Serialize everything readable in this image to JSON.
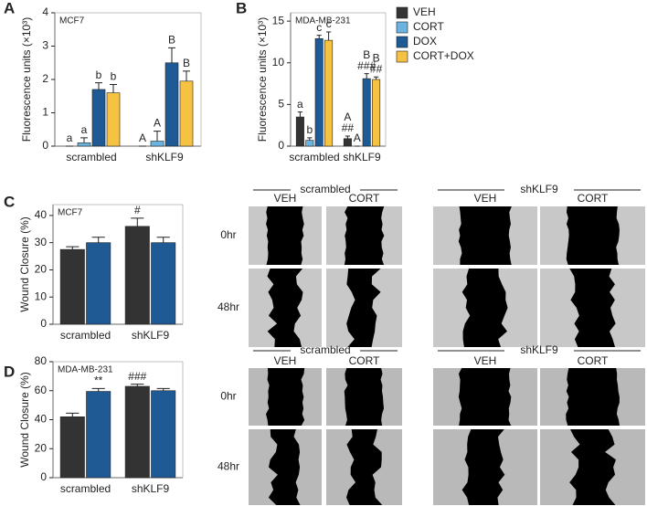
{
  "panel_letters": [
    "A",
    "B",
    "C",
    "D"
  ],
  "chart_data": [
    {
      "type": "bar",
      "label": "MCF7",
      "y_label": "Fluorescence units (×10³)",
      "categories": [
        "scrambled",
        "shKLF9"
      ],
      "ylim": [
        0,
        4
      ],
      "yticks": [
        0,
        1,
        2,
        3,
        4
      ],
      "series": [
        {
          "name": "VEH",
          "color": "#333333",
          "values": [
            0,
            0
          ],
          "errors": [
            0,
            0
          ],
          "labels": [
            [
              "a"
            ],
            [
              "A"
            ]
          ]
        },
        {
          "name": "CORT",
          "color": "#6cb4e0",
          "values": [
            0.1,
            0.15
          ],
          "errors": [
            0.15,
            0.3
          ],
          "labels": [
            [
              "a"
            ],
            [
              "A"
            ]
          ]
        },
        {
          "name": "DOX",
          "color": "#1f5a94",
          "values": [
            1.7,
            2.5
          ],
          "errors": [
            0.2,
            0.45
          ],
          "labels": [
            [
              "b"
            ],
            [
              "B"
            ]
          ]
        },
        {
          "name": "CORT+DOX",
          "color": "#f5c242",
          "values": [
            1.6,
            1.95
          ],
          "errors": [
            0.25,
            0.3
          ],
          "labels": [
            [
              "b"
            ],
            [
              "B"
            ]
          ]
        }
      ]
    },
    {
      "type": "bar",
      "label": "MDA-MB-231",
      "y_label": "Fluorescence units (×10³)",
      "categories": [
        "scrambled",
        "shKLF9"
      ],
      "ylim": [
        0,
        16
      ],
      "yticks": [
        0,
        5,
        10,
        15
      ],
      "legend": "right",
      "series": [
        {
          "name": "VEH",
          "color": "#333333",
          "values": [
            3.5,
            0.9
          ],
          "errors": [
            0.6,
            0.3
          ],
          "labels": [
            [
              "a"
            ],
            [
              "A",
              "##"
            ]
          ]
        },
        {
          "name": "CORT",
          "color": "#6cb4e0",
          "values": [
            0.7,
            0
          ],
          "errors": [
            0.3,
            0
          ],
          "labels": [
            [
              "b"
            ],
            [
              "A"
            ]
          ]
        },
        {
          "name": "DOX",
          "color": "#1f5a94",
          "values": [
            12.9,
            8.1
          ],
          "errors": [
            0.4,
            0.6
          ],
          "labels": [
            [
              "c"
            ],
            [
              "B",
              "###"
            ]
          ]
        },
        {
          "name": "CORT+DOX",
          "color": "#f5c242",
          "values": [
            12.7,
            8.0
          ],
          "errors": [
            1.0,
            0.3
          ],
          "labels": [
            [
              "c"
            ],
            [
              "B",
              "##"
            ]
          ]
        }
      ]
    },
    {
      "type": "bar",
      "label": "MCF7",
      "y_label": "Wound Closure (%)",
      "categories": [
        "scrambled",
        "shKLF9"
      ],
      "ylim": [
        0,
        44
      ],
      "yticks": [
        0,
        10,
        20,
        30,
        40
      ],
      "series": [
        {
          "color": "#333333",
          "values": [
            27.5,
            36
          ],
          "errors": [
            1,
            3
          ],
          "labels": [
            [],
            [
              "#"
            ]
          ]
        },
        {
          "color": "#1f5a94",
          "values": [
            30,
            30
          ],
          "errors": [
            2,
            2
          ],
          "labels": [
            [],
            []
          ]
        }
      ]
    },
    {
      "type": "bar",
      "label": "MDA-MB-231",
      "y_label": "Wound Closure (%)",
      "categories": [
        "scrambled",
        "shKLF9"
      ],
      "ylim": [
        0,
        80
      ],
      "yticks": [
        0,
        20,
        40,
        60,
        80
      ],
      "series": [
        {
          "color": "#333333",
          "values": [
            42,
            63
          ],
          "errors": [
            2.5,
            1.5
          ],
          "labels": [
            [],
            [
              "###"
            ]
          ]
        },
        {
          "color": "#1f5a94",
          "values": [
            59.5,
            60
          ],
          "errors": [
            2,
            1.5
          ],
          "labels": [
            [
              "**"
            ],
            []
          ]
        }
      ]
    }
  ],
  "micrographs": [
    {
      "groups": [
        "scrambled",
        "shKLF9"
      ],
      "columns": [
        "VEH",
        "CORT",
        "VEH",
        "CORT"
      ],
      "rows": [
        "0hr",
        "48hr"
      ]
    },
    {
      "groups": [
        "scrambled",
        "shKLF9"
      ],
      "columns": [
        "VEH",
        "CORT",
        "VEH",
        "CORT"
      ],
      "rows": [
        "0hr",
        "48hr"
      ]
    }
  ]
}
